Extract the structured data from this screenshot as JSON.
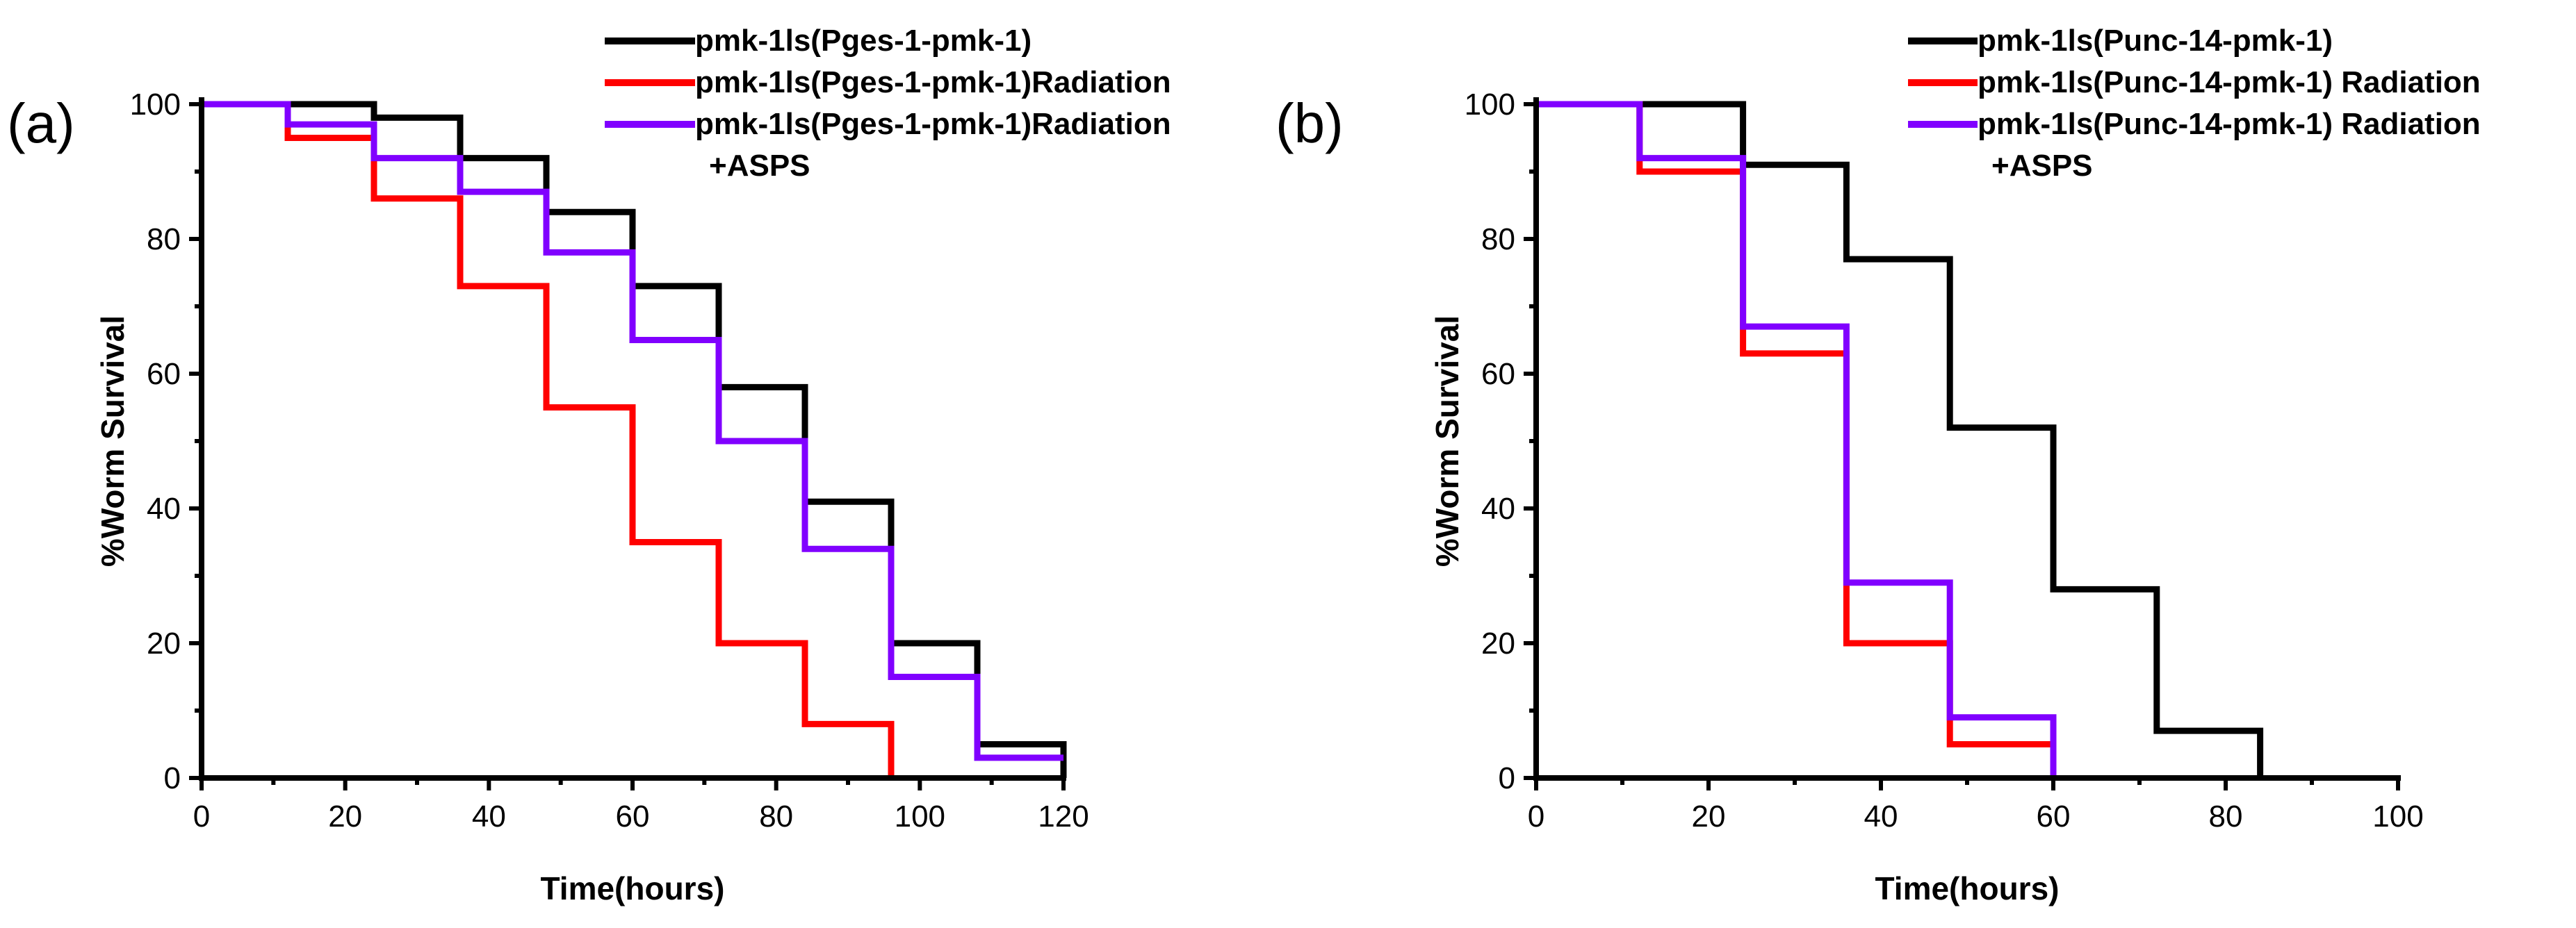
{
  "chart_data": [
    {
      "type": "line",
      "step": true,
      "panel_label": "(a)",
      "xlabel": "Time(hours)",
      "ylabel": "%Worm Survival",
      "xlim": [
        0,
        120
      ],
      "ylim": [
        0,
        100
      ],
      "xticks": [
        0,
        20,
        40,
        60,
        80,
        100,
        120
      ],
      "yticks": [
        0,
        20,
        40,
        60,
        80,
        100
      ],
      "legend_position": "top-right",
      "series": [
        {
          "name": "pmk-1ls(Pges-1-pmk-1)",
          "color": "#000000",
          "x": [
            0,
            12,
            24,
            36,
            48,
            60,
            72,
            84,
            96,
            108,
            120
          ],
          "y": [
            100,
            100,
            98,
            92,
            84,
            73,
            58,
            41,
            20,
            5,
            0
          ]
        },
        {
          "name": "pmk-1ls(Pges-1-pmk-1)Radiation",
          "color": "#ff0000",
          "x": [
            0,
            12,
            24,
            36,
            48,
            60,
            72,
            84,
            96
          ],
          "y": [
            100,
            95,
            86,
            73,
            55,
            35,
            20,
            8,
            0
          ]
        },
        {
          "name": "pmk-1ls(Pges-1-pmk-1)Radiation",
          "name_line2": "+ASPS",
          "color": "#8000ff",
          "x": [
            0,
            12,
            24,
            36,
            48,
            60,
            72,
            84,
            96,
            108,
            120
          ],
          "y": [
            100,
            97,
            92,
            87,
            78,
            65,
            50,
            34,
            15,
            3,
            3
          ]
        }
      ]
    },
    {
      "type": "line",
      "step": true,
      "panel_label": "(b)",
      "xlabel": "Time(hours)",
      "ylabel": "%Worm Survival",
      "xlim": [
        0,
        100
      ],
      "ylim": [
        0,
        100
      ],
      "xticks": [
        0,
        20,
        40,
        60,
        80,
        100
      ],
      "yticks": [
        0,
        20,
        40,
        60,
        80,
        100
      ],
      "legend_position": "top-right",
      "series": [
        {
          "name": "pmk-1ls(Punc-14-pmk-1)",
          "color": "#000000",
          "x": [
            0,
            12,
            24,
            36,
            48,
            60,
            72,
            84
          ],
          "y": [
            100,
            100,
            91,
            77,
            52,
            28,
            7,
            0
          ]
        },
        {
          "name": "pmk-1ls(Punc-14-pmk-1) Radiation",
          "color": "#ff0000",
          "x": [
            0,
            12,
            24,
            36,
            48,
            60
          ],
          "y": [
            100,
            90,
            63,
            20,
            5,
            0
          ]
        },
        {
          "name": "pmk-1ls(Punc-14-pmk-1) Radiation",
          "name_line2": "+ASPS",
          "color": "#8000ff",
          "x": [
            0,
            12,
            24,
            36,
            48,
            60
          ],
          "y": [
            100,
            92,
            67,
            29,
            9,
            0
          ]
        }
      ]
    }
  ]
}
